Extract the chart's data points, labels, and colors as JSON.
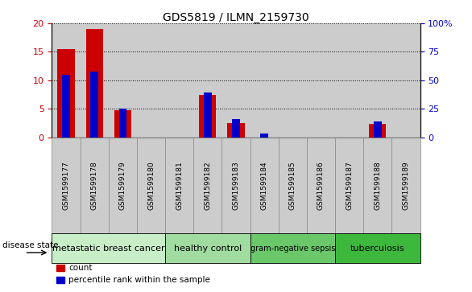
{
  "title": "GDS5819 / ILMN_2159730",
  "samples": [
    "GSM1599177",
    "GSM1599178",
    "GSM1599179",
    "GSM1599180",
    "GSM1599181",
    "GSM1599182",
    "GSM1599183",
    "GSM1599184",
    "GSM1599185",
    "GSM1599186",
    "GSM1599187",
    "GSM1599188",
    "GSM1599189"
  ],
  "count": [
    15.5,
    19.0,
    4.8,
    0.0,
    0.0,
    7.5,
    2.5,
    0.0,
    0.0,
    0.0,
    0.0,
    2.3,
    0.0
  ],
  "percentile": [
    55.0,
    57.5,
    25.0,
    0.0,
    0.0,
    39.0,
    16.0,
    3.0,
    0.0,
    0.0,
    0.0,
    13.5,
    0.0
  ],
  "ylim_left": [
    0,
    20
  ],
  "ylim_right": [
    0,
    100
  ],
  "yticks_left": [
    0,
    5,
    10,
    15,
    20
  ],
  "yticks_right": [
    0,
    25,
    50,
    75,
    100
  ],
  "ytick_labels_right": [
    "0",
    "25",
    "50",
    "75",
    "100%"
  ],
  "disease_groups": [
    {
      "label": "metastatic breast cancer",
      "start": 0,
      "end": 4,
      "color": "#c8eec8",
      "fontsize": 8
    },
    {
      "label": "healthy control",
      "start": 4,
      "end": 7,
      "color": "#a0dba0",
      "fontsize": 8
    },
    {
      "label": "gram-negative sepsis",
      "start": 7,
      "end": 10,
      "color": "#6ac86a",
      "fontsize": 7
    },
    {
      "label": "tuberculosis",
      "start": 10,
      "end": 13,
      "color": "#3db83d",
      "fontsize": 8
    }
  ],
  "bar_color_count": "#cc0000",
  "bar_color_percentile": "#0000cc",
  "bar_width": 0.6,
  "grid_style": "dotted",
  "grid_color": "#000000",
  "legend_items": [
    "count",
    "percentile rank within the sample"
  ],
  "disease_state_label": "disease state",
  "tick_label_color_left": "#cc0000",
  "tick_label_color_right": "#0000cc",
  "sample_bg_color": "#cccccc",
  "col_sep_color": "#888888"
}
